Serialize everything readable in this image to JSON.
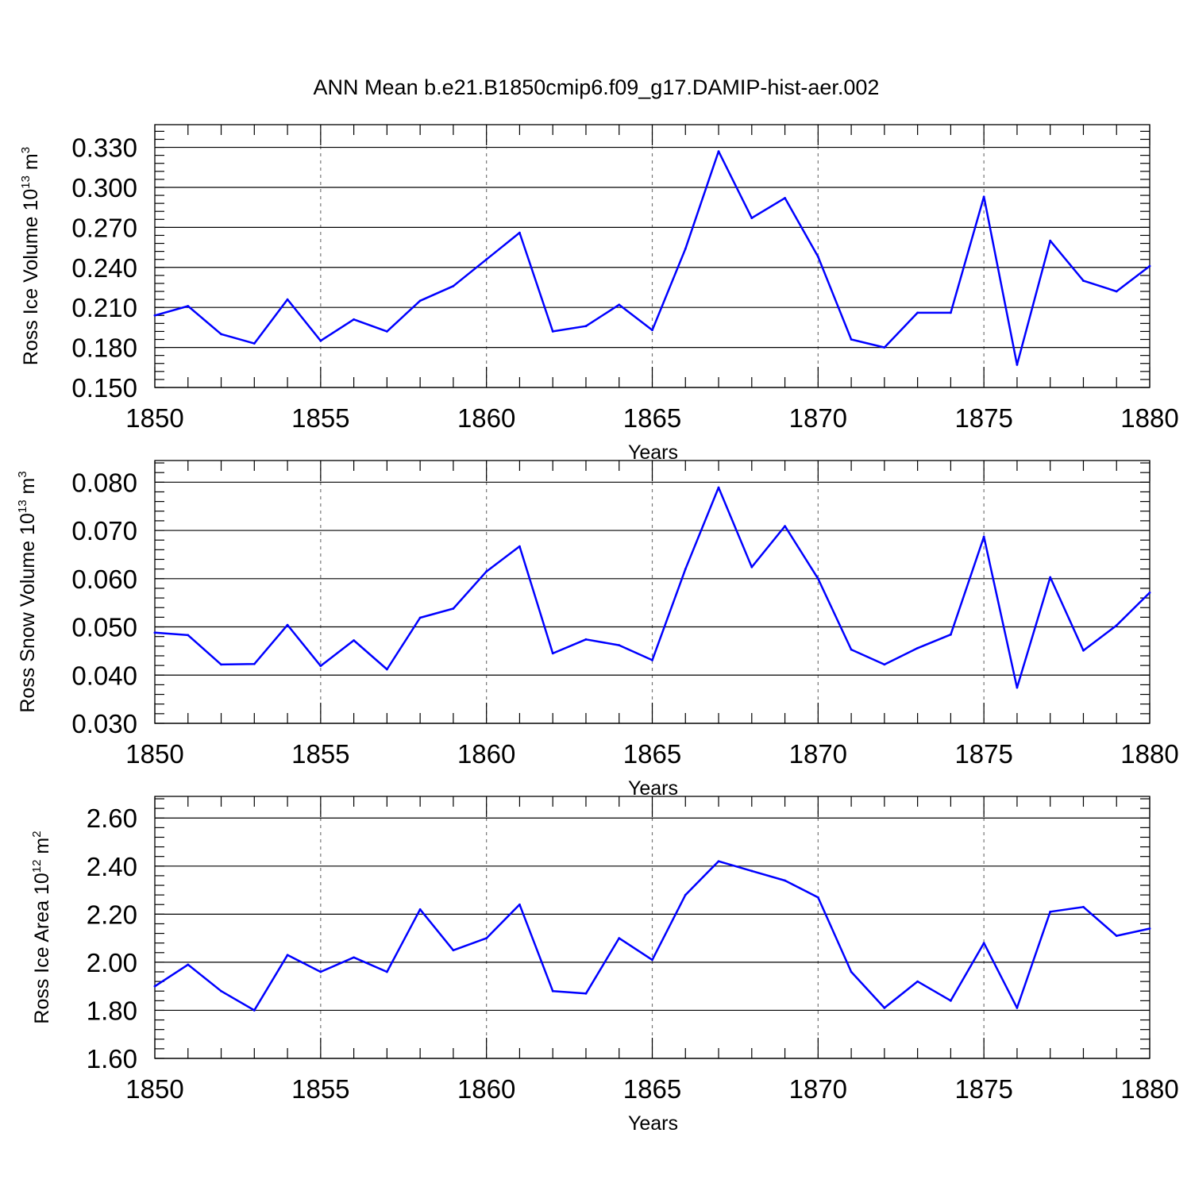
{
  "title": "ANN Mean b.e21.B1850cmip6.f09_g17.DAMIP-hist-aer.002",
  "chart_data": [
    {
      "type": "line",
      "id": "ross-ice-volume",
      "ylabel": {
        "text": "Ross Ice Volume 10",
        "exp": "13",
        "unit": " m",
        "unit_exp": "3"
      },
      "xlabel": "Years",
      "xlim": [
        1850,
        1880
      ],
      "ylim": [
        0.15,
        0.347
      ],
      "yticks": [
        0.15,
        0.18,
        0.21,
        0.24,
        0.27,
        0.3,
        0.33
      ],
      "ytick_labels": [
        "0.150",
        "0.180",
        "0.210",
        "0.240",
        "0.270",
        "0.300",
        "0.330"
      ],
      "ytick_minor_step": 0.006,
      "xticks": [
        1850,
        1855,
        1860,
        1865,
        1870,
        1875,
        1880
      ],
      "xtick_labels": [
        "1850",
        "1855",
        "1860",
        "1865",
        "1870",
        "1875",
        "1880"
      ],
      "x_grid": "dashed at major x ticks",
      "color": "#0000ff",
      "series": [
        {
          "name": "Ross Ice Volume",
          "x_start": 1850,
          "values": [
            0.204,
            0.211,
            0.19,
            0.183,
            0.216,
            0.185,
            0.201,
            0.192,
            0.215,
            0.226,
            0.246,
            0.266,
            0.192,
            0.196,
            0.212,
            0.193,
            0.254,
            0.327,
            0.277,
            0.292,
            0.248,
            0.186,
            0.18,
            0.206,
            0.206,
            0.293,
            0.167,
            0.26,
            0.23,
            0.222,
            0.241
          ]
        }
      ]
    },
    {
      "type": "line",
      "id": "ross-snow-volume",
      "ylabel": {
        "text": "Ross Snow Volume 10",
        "exp": "13",
        "unit": " m",
        "unit_exp": "3"
      },
      "xlabel": "Years",
      "xlim": [
        1850,
        1880
      ],
      "ylim": [
        0.03,
        0.0845
      ],
      "yticks": [
        0.03,
        0.04,
        0.05,
        0.06,
        0.07,
        0.08
      ],
      "ytick_labels": [
        "0.030",
        "0.040",
        "0.050",
        "0.060",
        "0.070",
        "0.080"
      ],
      "ytick_minor_step": 0.002,
      "xticks": [
        1850,
        1855,
        1860,
        1865,
        1870,
        1875,
        1880
      ],
      "xtick_labels": [
        "1850",
        "1855",
        "1860",
        "1865",
        "1870",
        "1875",
        "1880"
      ],
      "x_grid": "dashed at major x ticks",
      "color": "#0000ff",
      "series": [
        {
          "name": "Ross Snow Volume",
          "x_start": 1850,
          "values": [
            0.0488,
            0.0483,
            0.0422,
            0.0423,
            0.0504,
            0.0419,
            0.0472,
            0.0412,
            0.0519,
            0.0538,
            0.0615,
            0.0667,
            0.0445,
            0.0474,
            0.0462,
            0.0431,
            0.062,
            0.0789,
            0.0624,
            0.0709,
            0.06,
            0.0453,
            0.0422,
            0.0456,
            0.0484,
            0.0687,
            0.0374,
            0.0603,
            0.0451,
            0.0503,
            0.0571
          ]
        }
      ]
    },
    {
      "type": "line",
      "id": "ross-ice-area",
      "ylabel": {
        "text": "Ross Ice Area 10",
        "exp": "12",
        "unit": " m",
        "unit_exp": "2"
      },
      "xlabel": "Years",
      "xlim": [
        1850,
        1880
      ],
      "ylim": [
        1.6,
        2.69
      ],
      "yticks": [
        1.6,
        1.8,
        2.0,
        2.2,
        2.4,
        2.6
      ],
      "ytick_labels": [
        "1.60",
        "1.80",
        "2.00",
        "2.20",
        "2.40",
        "2.60"
      ],
      "ytick_minor_step": 0.04,
      "xticks": [
        1850,
        1855,
        1860,
        1865,
        1870,
        1875,
        1880
      ],
      "xtick_labels": [
        "1850",
        "1855",
        "1860",
        "1865",
        "1870",
        "1875",
        "1880"
      ],
      "x_grid": "dashed at major x ticks",
      "color": "#0000ff",
      "series": [
        {
          "name": "Ross Ice Area",
          "x_start": 1850,
          "values": [
            1.9,
            1.99,
            1.88,
            1.8,
            2.03,
            1.96,
            2.02,
            1.96,
            2.22,
            2.05,
            2.1,
            2.24,
            1.88,
            1.87,
            2.1,
            2.01,
            2.28,
            2.42,
            2.38,
            2.34,
            2.27,
            1.96,
            1.81,
            1.92,
            1.84,
            2.08,
            1.81,
            2.21,
            2.23,
            2.11,
            2.14
          ]
        }
      ]
    }
  ]
}
